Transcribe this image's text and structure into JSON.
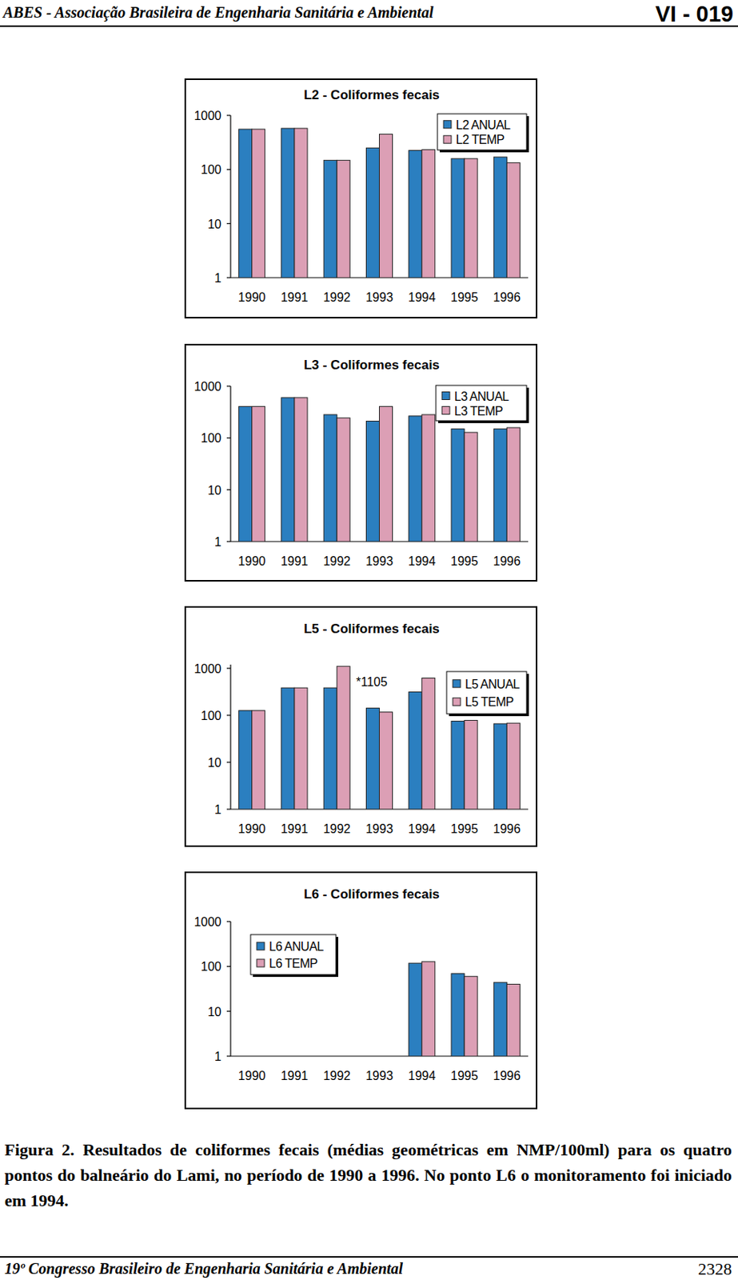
{
  "header": {
    "left": "ABES - Associação Brasileira de Engenharia Sanitária e Ambiental",
    "right": "VI - 019"
  },
  "chart_data": [
    {
      "type": "bar",
      "title": "L2 - Coliformes fecais",
      "categories": [
        "1990",
        "1991",
        "1992",
        "1993",
        "1994",
        "1995",
        "1996"
      ],
      "series": [
        {
          "name": "L2 ANUAL",
          "color": "#2b7fc0",
          "values": [
            555,
            575,
            148,
            250,
            225,
            159,
            170
          ]
        },
        {
          "name": "L2 TEMP",
          "color": "#dc9fb5",
          "values": [
            555,
            575,
            148,
            450,
            232,
            159,
            133
          ]
        }
      ],
      "ylim": [
        1,
        1000
      ],
      "yticks": [
        1,
        10,
        100,
        1000
      ],
      "log": "y",
      "legend": "upper right"
    },
    {
      "type": "bar",
      "title": "L3 - Coliformes fecais",
      "categories": [
        "1990",
        "1991",
        "1992",
        "1993",
        "1994",
        "1995",
        "1996"
      ],
      "series": [
        {
          "name": "L3 ANUAL",
          "color": "#2b7fc0",
          "values": [
            405,
            600,
            282,
            211,
            265,
            149,
            149
          ]
        },
        {
          "name": "L3 TEMP",
          "color": "#dc9fb5",
          "values": [
            405,
            600,
            244,
            405,
            282,
            128,
            158
          ]
        }
      ],
      "ylim": [
        1,
        1000
      ],
      "yticks": [
        1,
        10,
        100,
        1000
      ],
      "log": "y",
      "legend": "upper right"
    },
    {
      "type": "bar",
      "title": "L5 - Coliformes fecais",
      "categories": [
        "1990",
        "1991",
        "1992",
        "1993",
        "1994",
        "1995",
        "1996"
      ],
      "series": [
        {
          "name": "L5 ANUAL",
          "color": "#2b7fc0",
          "values": [
            126,
            384,
            384,
            142,
            314,
            75,
            66
          ]
        },
        {
          "name": "L5 TEMP",
          "color": "#dc9fb5",
          "values": [
            126,
            384,
            1105,
            117,
            620,
            78,
            68
          ],
          "value_labels": [
            null,
            null,
            "*1105",
            null,
            null,
            null,
            null
          ]
        }
      ],
      "ylim": [
        1,
        1200
      ],
      "yticks": [
        1,
        10,
        100,
        1000
      ],
      "log": "y",
      "legend": "upper right"
    },
    {
      "type": "bar",
      "title": "L6 - Coliformes fecais",
      "categories": [
        "1990",
        "1991",
        "1992",
        "1993",
        "1994",
        "1995",
        "1996"
      ],
      "series": [
        {
          "name": "L6 ANUAL",
          "color": "#2b7fc0",
          "values": [
            null,
            null,
            null,
            null,
            118,
            69,
            44
          ]
        },
        {
          "name": "L6 TEMP",
          "color": "#dc9fb5",
          "values": [
            null,
            null,
            null,
            null,
            128,
            60,
            40
          ]
        }
      ],
      "ylim": [
        1,
        1000
      ],
      "yticks": [
        1,
        10,
        100,
        1000
      ],
      "log": "y",
      "legend": "upper left"
    }
  ],
  "caption": "Figura 2. Resultados de coliformes fecais (médias geométricas em NMP/100ml) para os quatro pontos do balneário do Lami, no período de 1990 a 1996. No ponto L6 o monitoramento foi iniciado em 1994.",
  "footer": {
    "left": "19º Congresso Brasileiro de Engenharia Sanitária e Ambiental",
    "right": "2328"
  }
}
